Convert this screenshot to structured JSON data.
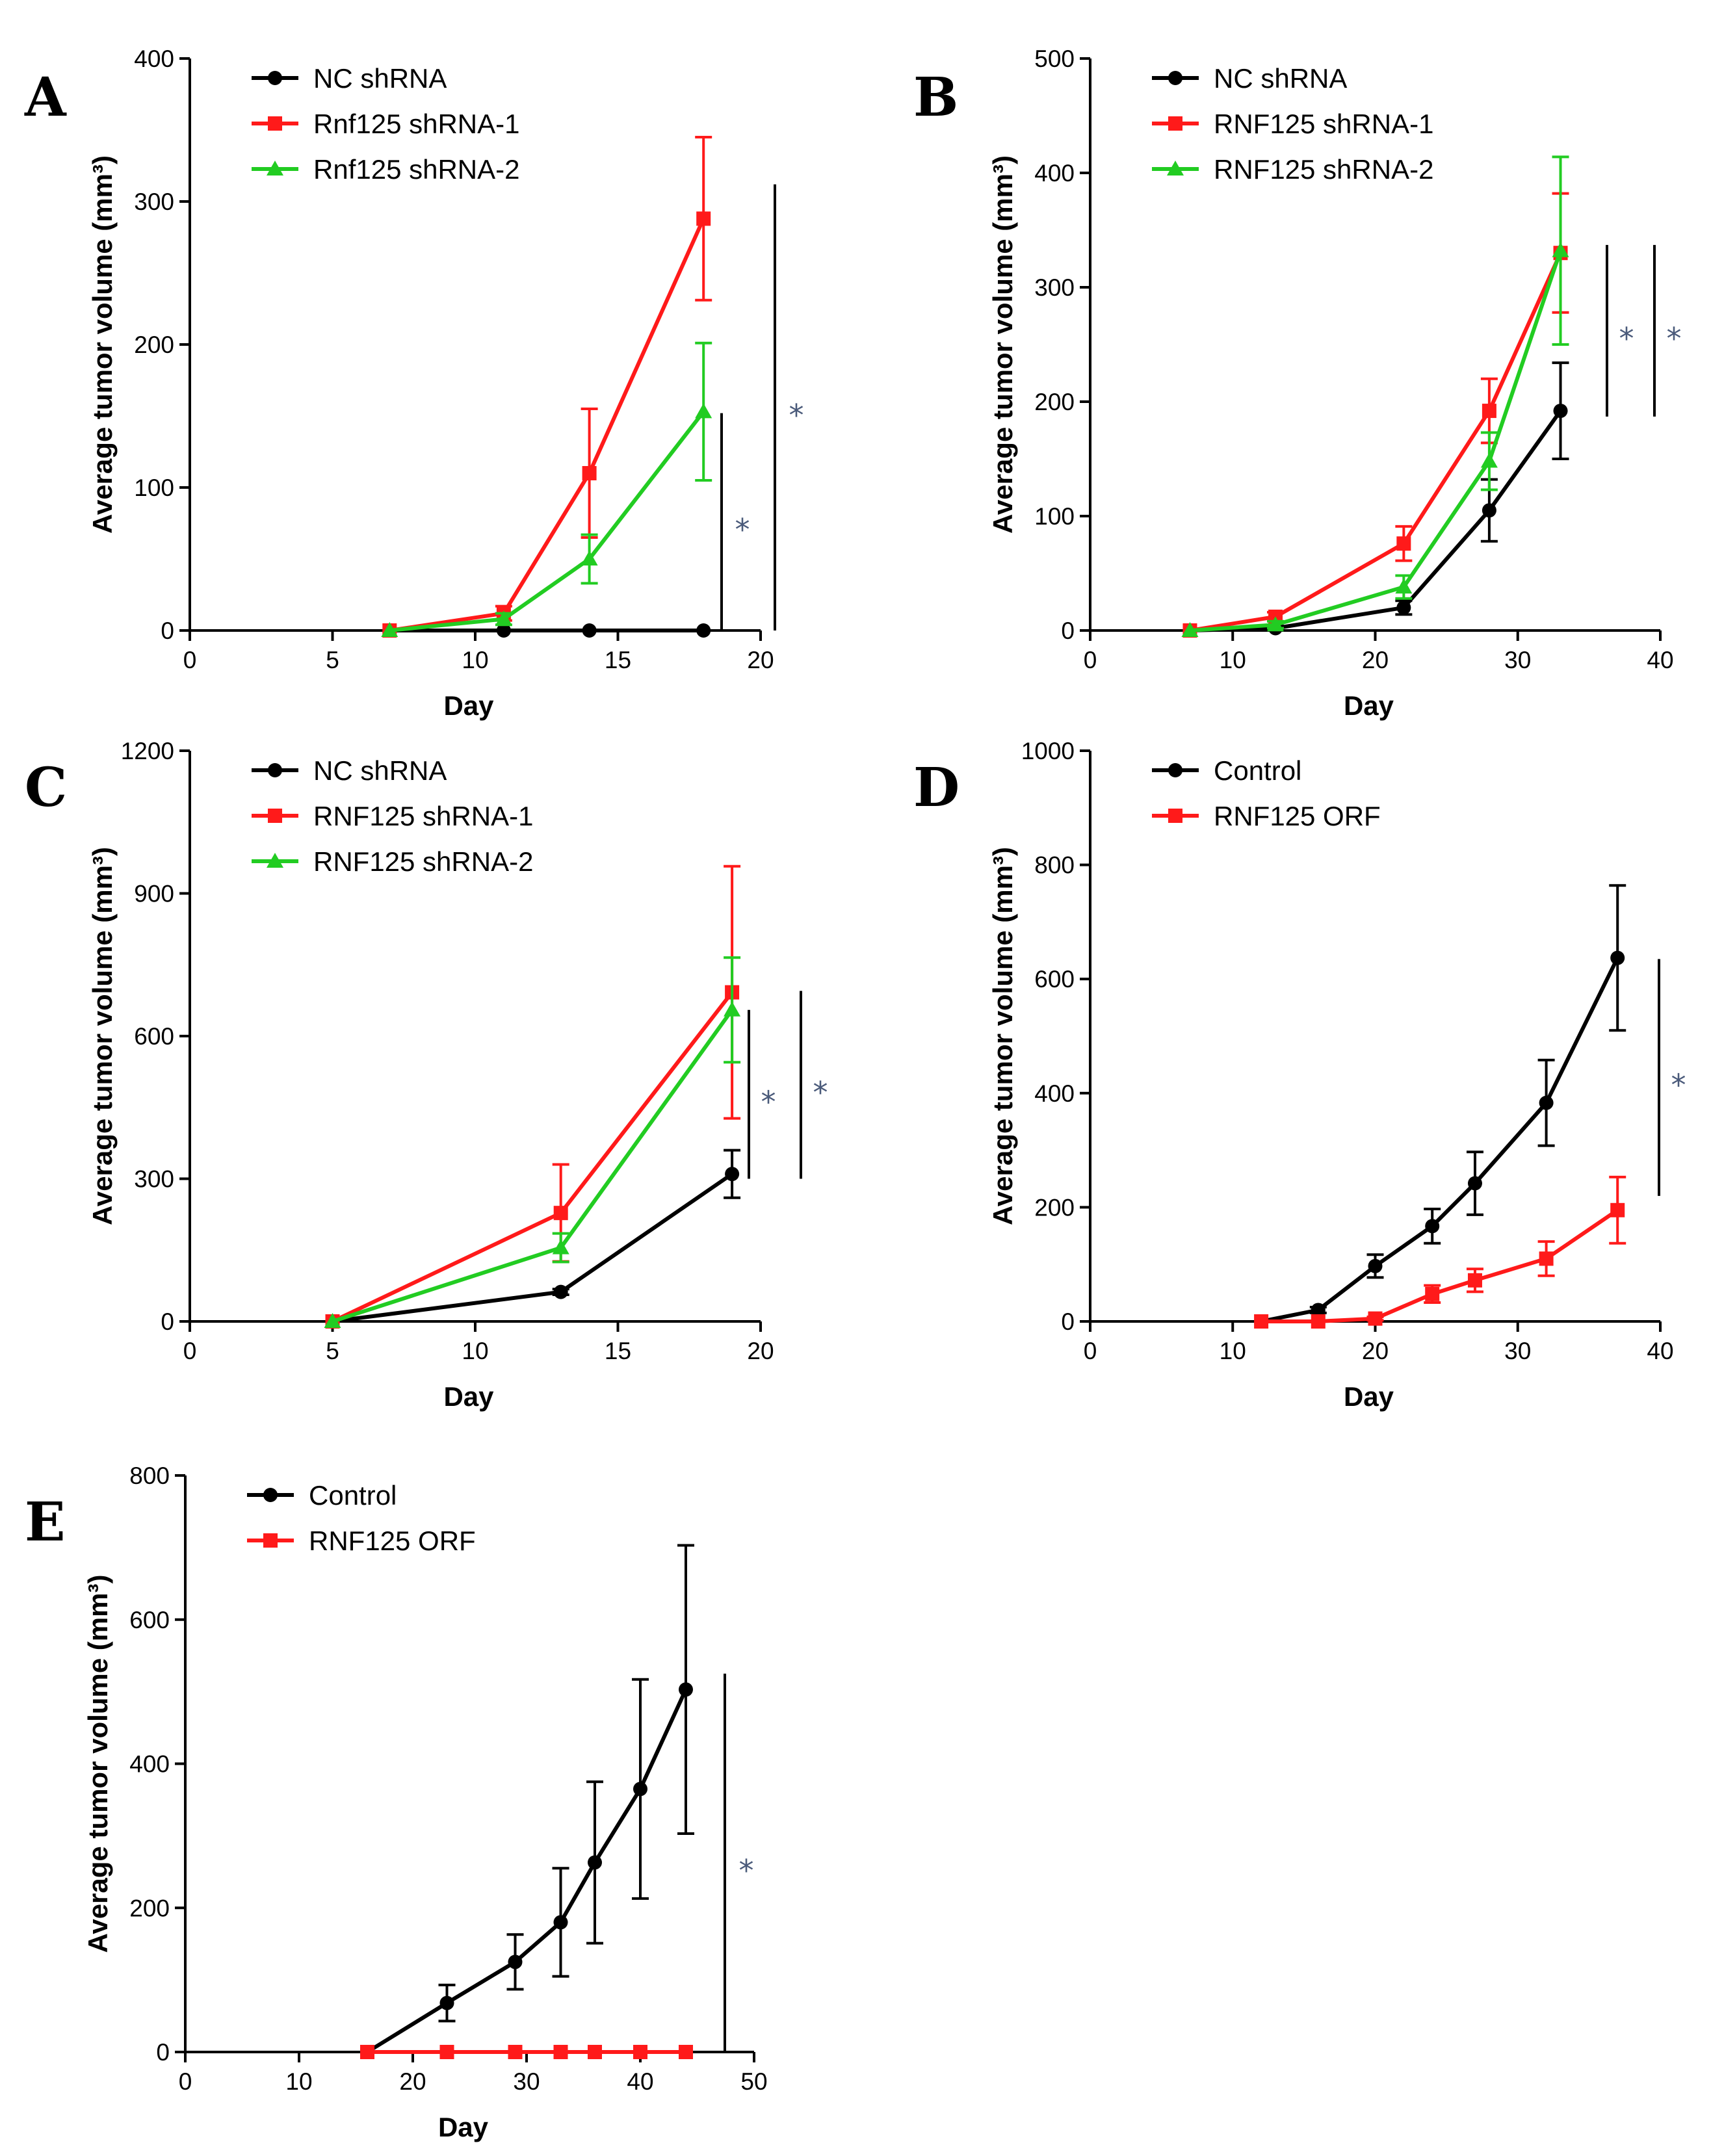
{
  "chart_data": [
    {
      "panel": "A",
      "type": "line",
      "xlabel": "Day",
      "ylabel": "Average tumor volume (mm³)",
      "xlim": [
        0,
        20
      ],
      "xticks": [
        0,
        5,
        10,
        15,
        20
      ],
      "ylim": [
        0,
        400
      ],
      "yticks": [
        0,
        100,
        200,
        300,
        400
      ],
      "legend": "top-left",
      "series": [
        {
          "name": "NC shRNA",
          "color": "#000000",
          "marker": "circle",
          "x": [
            7,
            11,
            14,
            18
          ],
          "y": [
            0,
            0,
            0,
            0
          ],
          "err": [
            0,
            0,
            0,
            0
          ]
        },
        {
          "name": "Rnf125 shRNA-1",
          "color": "#ff1a1a",
          "marker": "square",
          "x": [
            7,
            11,
            14,
            18
          ],
          "y": [
            0,
            12,
            110,
            288
          ],
          "err": [
            0,
            5,
            45,
            57
          ]
        },
        {
          "name": "Rnf125 shRNA-2",
          "color": "#22cc22",
          "marker": "triangle",
          "x": [
            7,
            11,
            14,
            18
          ],
          "y": [
            0,
            8,
            50,
            153
          ],
          "err": [
            0,
            4,
            17,
            48
          ]
        }
      ],
      "significance": [
        {
          "label": "*",
          "range": [
            0,
            152
          ]
        },
        {
          "label": "*",
          "range": [
            0,
            312
          ]
        }
      ]
    },
    {
      "panel": "B",
      "type": "line",
      "xlabel": "Day",
      "ylabel": "Average tumor volume (mm³)",
      "xlim": [
        0,
        40
      ],
      "xticks": [
        0,
        10,
        20,
        30,
        40
      ],
      "ylim": [
        0,
        500
      ],
      "yticks": [
        0,
        100,
        200,
        300,
        400,
        500
      ],
      "legend": "top-left",
      "series": [
        {
          "name": "NC shRNA",
          "color": "#000000",
          "marker": "circle",
          "x": [
            7,
            13,
            22,
            28,
            33
          ],
          "y": [
            0,
            2,
            20,
            105,
            192
          ],
          "err": [
            0,
            2,
            6,
            27,
            42
          ]
        },
        {
          "name": "RNF125 shRNA-1",
          "color": "#ff1a1a",
          "marker": "square",
          "x": [
            7,
            13,
            22,
            28,
            33
          ],
          "y": [
            0,
            12,
            76,
            192,
            330
          ],
          "err": [
            0,
            4,
            15,
            28,
            52
          ]
        },
        {
          "name": "RNF125 shRNA-2",
          "color": "#22cc22",
          "marker": "triangle",
          "x": [
            7,
            13,
            22,
            28,
            33
          ],
          "y": [
            0,
            5,
            38,
            148,
            332
          ],
          "err": [
            0,
            3,
            10,
            25,
            82
          ]
        }
      ],
      "significance": [
        {
          "label": "*",
          "range": [
            187,
            337
          ]
        },
        {
          "label": "*",
          "range": [
            187,
            337
          ]
        }
      ]
    },
    {
      "panel": "C",
      "type": "line",
      "xlabel": "Day",
      "ylabel": "Average tumor volume (mm³)",
      "xlim": [
        0,
        20
      ],
      "xticks": [
        0,
        5,
        10,
        15,
        20
      ],
      "ylim": [
        0,
        1200
      ],
      "yticks": [
        0,
        300,
        600,
        900,
        1200
      ],
      "legend": "top-left",
      "series": [
        {
          "name": "NC shRNA",
          "color": "#000000",
          "marker": "circle",
          "x": [
            5,
            13,
            19
          ],
          "y": [
            0,
            62,
            310
          ],
          "err": [
            0,
            6,
            50
          ]
        },
        {
          "name": "RNF125 shRNA-1",
          "color": "#ff1a1a",
          "marker": "square",
          "x": [
            5,
            13,
            19
          ],
          "y": [
            0,
            228,
            692
          ],
          "err": [
            0,
            102,
            265
          ]
        },
        {
          "name": "RNF125 shRNA-2",
          "color": "#22cc22",
          "marker": "triangle",
          "x": [
            5,
            13,
            19
          ],
          "y": [
            0,
            155,
            655
          ],
          "err": [
            0,
            30,
            110
          ]
        }
      ],
      "significance": [
        {
          "label": "*",
          "range": [
            300,
            655
          ]
        },
        {
          "label": "*",
          "range": [
            300,
            695
          ]
        }
      ]
    },
    {
      "panel": "D",
      "type": "line",
      "xlabel": "Day",
      "ylabel": "Average tumor volume (mm³)",
      "xlim": [
        0,
        40
      ],
      "xticks": [
        0,
        10,
        20,
        30,
        40
      ],
      "ylim": [
        0,
        1000
      ],
      "yticks": [
        0,
        200,
        400,
        600,
        800,
        1000
      ],
      "legend": "top-left",
      "series": [
        {
          "name": "Control",
          "color": "#000000",
          "marker": "circle",
          "x": [
            12,
            16,
            20,
            24,
            27,
            32,
            37
          ],
          "y": [
            0,
            20,
            97,
            167,
            242,
            383,
            637
          ],
          "err": [
            0,
            5,
            20,
            30,
            55,
            75,
            127
          ]
        },
        {
          "name": "RNF125 ORF",
          "color": "#ff1a1a",
          "marker": "square",
          "x": [
            12,
            16,
            20,
            24,
            27,
            32,
            37
          ],
          "y": [
            0,
            0,
            5,
            48,
            72,
            110,
            195
          ],
          "err": [
            0,
            0,
            3,
            15,
            20,
            30,
            58
          ]
        }
      ],
      "significance": [
        {
          "label": "*",
          "range": [
            220,
            635
          ]
        }
      ]
    },
    {
      "panel": "E",
      "type": "line",
      "xlabel": "Day",
      "ylabel": "Average tumor volume (mm³)",
      "xlim": [
        0,
        50
      ],
      "xticks": [
        0,
        10,
        20,
        30,
        40,
        50
      ],
      "ylim": [
        0,
        800
      ],
      "yticks": [
        0,
        200,
        400,
        600,
        800
      ],
      "legend": "top-left",
      "series": [
        {
          "name": "Control",
          "color": "#000000",
          "marker": "circle",
          "x": [
            16,
            23,
            29,
            33,
            36,
            40,
            44
          ],
          "y": [
            0,
            68,
            125,
            180,
            263,
            365,
            503
          ],
          "err": [
            0,
            25,
            38,
            75,
            112,
            152,
            200
          ]
        },
        {
          "name": "RNF125 ORF",
          "color": "#ff1a1a",
          "marker": "square",
          "x": [
            16,
            23,
            29,
            33,
            36,
            40,
            44
          ],
          "y": [
            0,
            0,
            0,
            0,
            0,
            0,
            0
          ],
          "err": [
            0,
            0,
            0,
            0,
            0,
            0,
            0
          ]
        }
      ],
      "significance": [
        {
          "label": "*",
          "range": [
            0,
            525
          ]
        }
      ]
    }
  ]
}
